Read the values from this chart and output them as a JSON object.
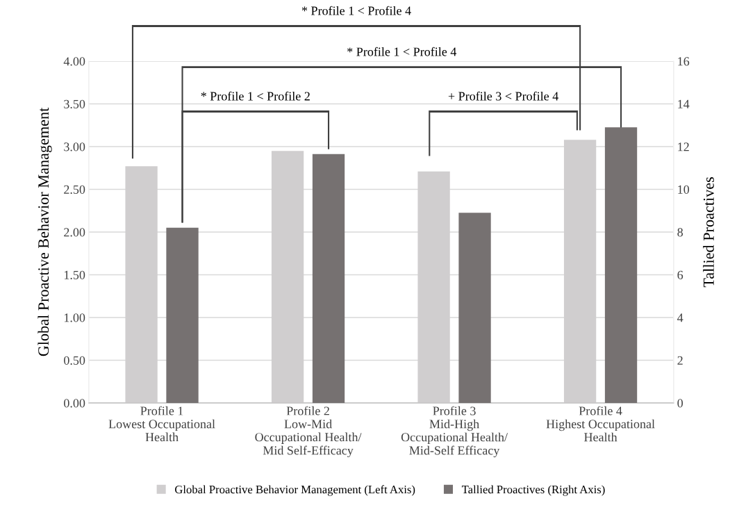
{
  "chart_data": {
    "type": "bar",
    "categories": [
      "Profile 1\nLowest Occupational\nHealth",
      "Profile 2\nLow-Mid\nOccupational Health/\nMid Self-Efficacy",
      "Profile 3\nMid-High\nOccupational Health/\nMid-Self Efficacy",
      "Profile 4\nHighest Occupational\nHealth"
    ],
    "series": [
      {
        "name": "Global Proactive Behavior Management (Left Axis)",
        "color": "#d0cecf",
        "values": [
          2.77,
          2.95,
          2.71,
          3.08
        ]
      },
      {
        "name": "Tallied Proactives (Right Axis)",
        "color": "#767171",
        "values": [
          8.2,
          11.65,
          8.9,
          12.9
        ],
        "axis": "y2"
      }
    ],
    "ylabel": "Global Proactive Behavior Management",
    "y2label": "Tallied Proactives",
    "ylim": [
      0,
      4
    ],
    "yticks": [
      {
        "value": 0,
        "label": "0.00"
      },
      {
        "value": 0.5,
        "label": "0.50"
      },
      {
        "value": 1,
        "label": "1.00"
      },
      {
        "value": 1.5,
        "label": "1.50"
      },
      {
        "value": 2,
        "label": "2.00"
      },
      {
        "value": 2.5,
        "label": "2.50"
      },
      {
        "value": 3,
        "label": "3.00"
      },
      {
        "value": 3.5,
        "label": "3.50"
      },
      {
        "value": 4,
        "label": "4.00"
      }
    ],
    "y2lim": [
      0,
      16
    ],
    "y2ticks": [
      0,
      2,
      4,
      6,
      8,
      10,
      12,
      14,
      16
    ],
    "annotations": [
      "* Profile 1 < Profile 4",
      "* Profile 1 < Profile 4",
      "* Profile 1 < Profile 2",
      "+ Profile 3 < Profile 4"
    ],
    "grid": "y",
    "legend": "bottom"
  }
}
